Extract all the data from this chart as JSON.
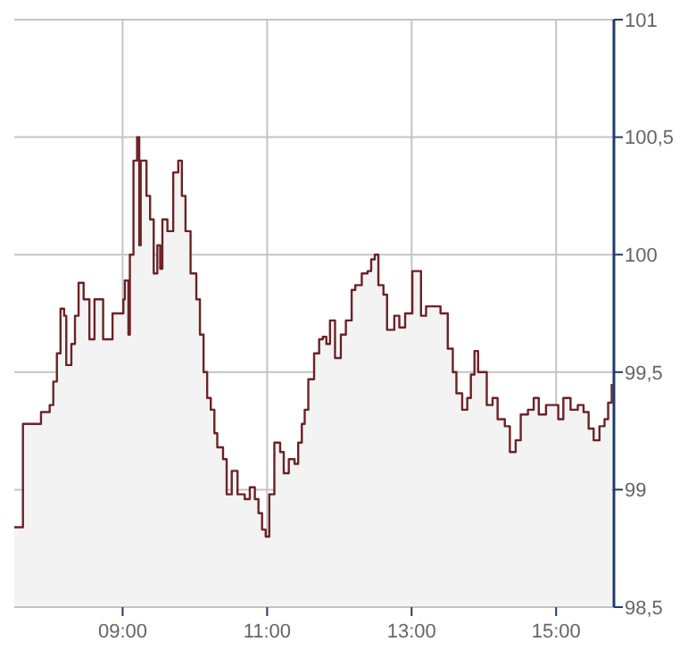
{
  "chart_data": {
    "type": "step",
    "grid": true,
    "x": [
      7.5,
      7.62,
      7.87,
      7.99,
      8.04,
      8.09,
      8.14,
      8.19,
      8.22,
      8.29,
      8.34,
      8.39,
      8.46,
      8.54,
      8.61,
      8.73,
      8.86,
      9.01,
      9.03,
      9.08,
      9.1,
      9.15,
      9.2,
      9.23,
      9.25,
      9.33,
      9.38,
      9.43,
      9.48,
      9.52,
      9.55,
      9.62,
      9.7,
      9.77,
      9.82,
      9.87,
      9.94,
      10.02,
      10.07,
      10.12,
      10.17,
      10.22,
      10.27,
      10.31,
      10.39,
      10.44,
      10.51,
      10.59,
      10.69,
      10.76,
      10.83,
      10.88,
      10.93,
      10.98,
      11.03,
      11.1,
      11.18,
      11.23,
      11.3,
      11.38,
      11.43,
      11.48,
      11.52,
      11.57,
      11.65,
      11.72,
      11.77,
      11.82,
      11.87,
      11.94,
      12.02,
      12.09,
      12.17,
      12.22,
      12.31,
      12.39,
      12.44,
      12.49,
      12.54,
      12.61,
      12.66,
      12.76,
      12.83,
      12.91,
      13.01,
      13.13,
      13.2,
      13.4,
      13.5,
      13.57,
      13.62,
      13.7,
      13.77,
      13.82,
      13.87,
      13.92,
      14.04,
      14.12,
      14.19,
      14.29,
      14.36,
      14.44,
      14.51,
      14.61,
      14.69,
      14.76,
      14.86,
      15.03,
      15.1,
      15.2,
      15.3,
      15.38,
      15.45,
      15.52,
      15.6,
      15.67,
      15.72,
      15.77
    ],
    "series": [
      {
        "type": "area",
        "color": "#f3f3f3",
        "values": [
          98.84,
          99.28,
          99.33,
          99.36,
          99.46,
          99.58,
          99.77,
          99.74,
          99.53,
          99.62,
          99.74,
          99.88,
          99.81,
          99.64,
          99.81,
          99.64,
          99.75,
          99.81,
          99.89,
          99.66,
          100.0,
          100.4,
          100.5,
          100.04,
          100.4,
          100.25,
          100.15,
          99.92,
          100.04,
          99.94,
          100.15,
          100.1,
          100.35,
          100.4,
          100.25,
          100.1,
          99.92,
          99.81,
          99.66,
          99.5,
          99.39,
          99.34,
          99.24,
          99.18,
          99.13,
          98.98,
          99.08,
          98.98,
          98.96,
          99.01,
          98.96,
          98.9,
          98.83,
          98.8,
          98.98,
          99.2,
          99.16,
          99.07,
          99.13,
          99.11,
          99.2,
          99.28,
          99.34,
          99.47,
          99.58,
          99.64,
          99.65,
          99.62,
          99.72,
          99.56,
          99.66,
          99.72,
          99.85,
          99.87,
          99.92,
          99.93,
          99.98,
          100.0,
          99.87,
          99.83,
          99.68,
          99.74,
          99.69,
          99.75,
          99.93,
          99.74,
          99.78,
          99.75,
          99.6,
          99.5,
          99.41,
          99.34,
          99.39,
          99.49,
          99.59,
          99.5,
          99.36,
          99.39,
          99.3,
          99.27,
          99.16,
          99.21,
          99.32,
          99.34,
          99.39,
          99.32,
          99.36,
          99.3,
          99.39,
          99.34,
          99.36,
          99.33,
          99.26,
          99.21,
          99.27,
          99.3,
          99.37,
          99.45
        ]
      },
      {
        "color": "#6b2227",
        "values": [
          98.84,
          99.28,
          99.33,
          99.36,
          99.46,
          99.58,
          99.77,
          99.74,
          99.53,
          99.62,
          99.74,
          99.88,
          99.81,
          99.64,
          99.81,
          99.64,
          99.75,
          99.81,
          99.89,
          99.66,
          100.0,
          100.4,
          100.5,
          100.04,
          100.4,
          100.25,
          100.15,
          99.92,
          100.04,
          99.94,
          100.15,
          100.1,
          100.35,
          100.4,
          100.25,
          100.1,
          99.92,
          99.81,
          99.66,
          99.5,
          99.39,
          99.34,
          99.24,
          99.18,
          99.13,
          98.98,
          99.08,
          98.98,
          98.96,
          99.01,
          98.96,
          98.9,
          98.83,
          98.8,
          98.98,
          99.2,
          99.16,
          99.07,
          99.13,
          99.11,
          99.2,
          99.28,
          99.34,
          99.47,
          99.58,
          99.64,
          99.65,
          99.62,
          99.72,
          99.56,
          99.66,
          99.72,
          99.85,
          99.87,
          99.92,
          99.93,
          99.98,
          100.0,
          99.87,
          99.83,
          99.68,
          99.74,
          99.69,
          99.75,
          99.93,
          99.74,
          99.78,
          99.75,
          99.6,
          99.5,
          99.41,
          99.34,
          99.39,
          99.49,
          99.59,
          99.5,
          99.36,
          99.39,
          99.3,
          99.27,
          99.16,
          99.21,
          99.32,
          99.34,
          99.39,
          99.32,
          99.36,
          99.3,
          99.39,
          99.34,
          99.36,
          99.33,
          99.26,
          99.21,
          99.27,
          99.3,
          99.37,
          99.45
        ]
      }
    ],
    "xlim": [
      7.5,
      15.8
    ],
    "ylim": [
      98.5,
      101
    ],
    "xticks": [
      {
        "value": 9,
        "label": "09:00"
      },
      {
        "value": 11,
        "label": "11:00"
      },
      {
        "value": 13,
        "label": "13:00"
      },
      {
        "value": 15,
        "label": "15:00"
      }
    ],
    "yticks": [
      {
        "value": 98.5,
        "label": "98,5"
      },
      99,
      {
        "value": 99.5,
        "label": "99,5"
      },
      100,
      {
        "value": 100.5,
        "label": "100,5"
      },
      101
    ]
  }
}
